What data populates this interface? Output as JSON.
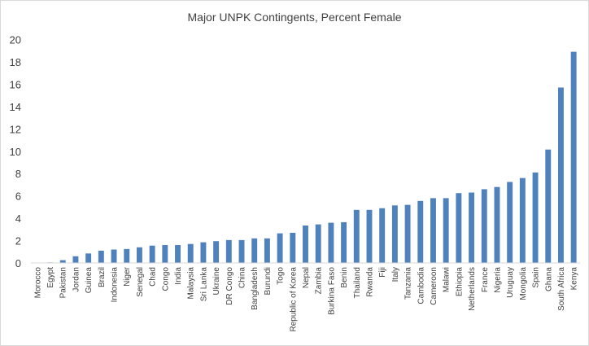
{
  "chart_data": {
    "type": "bar",
    "title": "Major UNPK Contingents, Percent Female",
    "xlabel": "",
    "ylabel": "",
    "ylim": [
      0,
      20
    ],
    "yticks": [
      0,
      2,
      4,
      6,
      8,
      10,
      12,
      14,
      16,
      18,
      20
    ],
    "grid": false,
    "legend": "none",
    "bar_color": "#4f81bd",
    "categories": [
      "Morocco",
      "Egypt",
      "Pakistan",
      "Jordan",
      "Guinea",
      "Brazil",
      "Indonesia",
      "Niger",
      "Senegal",
      "Chad",
      "Congo",
      "India",
      "Malaysia",
      "Sri Lanka",
      "Ukraine",
      "DR Congo",
      "China",
      "Bangladesh",
      "Burundi",
      "Togo",
      "Republic of Korea",
      "Nepal",
      "Zambia",
      "Burkina Faso",
      "Benin",
      "Thailand",
      "Rwanda",
      "Fiji",
      "Italy",
      "Tanzania",
      "Cambodia",
      "Cameroon",
      "Malawi",
      "Ethiopia",
      "Netherlands",
      "France",
      "Nigeria",
      "Uruguay",
      "Mongolia",
      "Spain",
      "Ghana",
      "South Africa",
      "Kenya"
    ],
    "values": [
      0.02,
      0.05,
      0.25,
      0.6,
      0.85,
      1.1,
      1.2,
      1.25,
      1.4,
      1.55,
      1.6,
      1.6,
      1.7,
      1.85,
      1.95,
      2.05,
      2.05,
      2.2,
      2.2,
      2.65,
      2.7,
      3.35,
      3.45,
      3.6,
      3.65,
      4.75,
      4.75,
      4.9,
      5.15,
      5.2,
      5.55,
      5.8,
      5.8,
      6.25,
      6.3,
      6.6,
      6.8,
      7.25,
      7.6,
      8.1,
      10.15,
      15.7,
      18.9
    ]
  }
}
